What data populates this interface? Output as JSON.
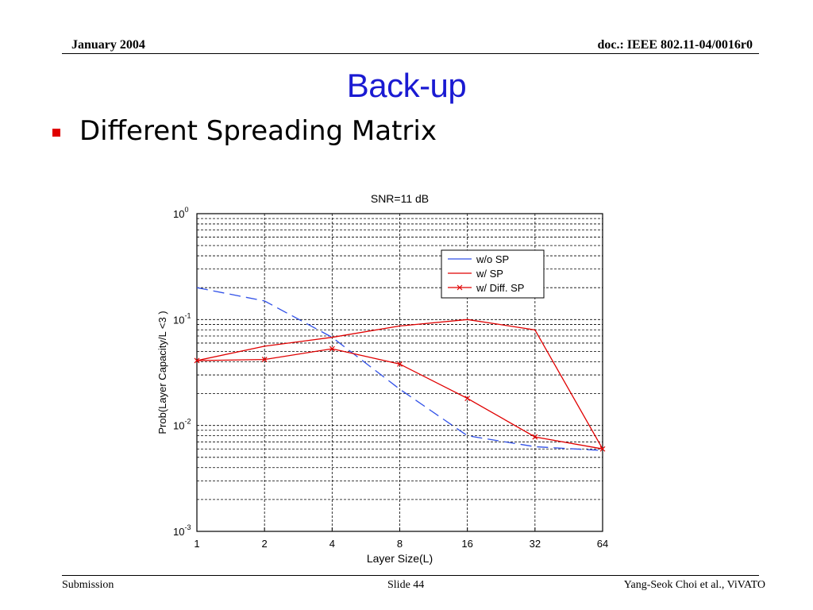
{
  "header": {
    "date": "January 2004",
    "doc": "doc.: IEEE 802.11-04/0016r0"
  },
  "slide": {
    "title": "Back-up",
    "bullet": "Different Spreading Matrix"
  },
  "footer": {
    "left": "Submission",
    "middle": "Slide 44",
    "right": "Yang-Seok Choi et al., ViVATO"
  },
  "colors": {
    "title": "#1a1ad2",
    "bullet": "#e00000",
    "series_blue": "#3050e8",
    "series_red": "#e00000"
  },
  "chart_data": {
    "type": "line",
    "title": "SNR=11 dB",
    "xlabel": "Layer Size(L)",
    "ylabel": "Prob(Layer Capacity/L <3 )",
    "x": [
      1,
      2,
      4,
      8,
      16,
      32,
      64
    ],
    "x_tick_labels": [
      "1",
      "2",
      "4",
      "8",
      "16",
      "32",
      "64"
    ],
    "x_scale": "log2",
    "y_scale": "log10",
    "ylim": [
      0.001,
      1
    ],
    "y_tick_labels": [
      {
        "base": "10",
        "exp": "0",
        "value": 1
      },
      {
        "base": "10",
        "exp": "-1",
        "value": 0.1
      },
      {
        "base": "10",
        "exp": "-2",
        "value": 0.01
      },
      {
        "base": "10",
        "exp": "-3",
        "value": 0.001
      }
    ],
    "grid": true,
    "legend_position": "top-right",
    "series": [
      {
        "name": "w/o SP",
        "color": "#3050e8",
        "style": "dashed",
        "marker": "none",
        "values": [
          0.2,
          0.15,
          0.068,
          0.022,
          0.008,
          0.0063,
          0.0058
        ]
      },
      {
        "name": "w/ SP",
        "color": "#e00000",
        "style": "solid",
        "marker": "none",
        "values": [
          0.041,
          0.056,
          0.068,
          0.087,
          0.1,
          0.08,
          0.006
        ]
      },
      {
        "name": "w/ Diff. SP",
        "color": "#e00000",
        "style": "solid",
        "marker": "x",
        "values": [
          0.041,
          0.042,
          0.053,
          0.038,
          0.018,
          0.0078,
          0.006
        ]
      }
    ]
  }
}
